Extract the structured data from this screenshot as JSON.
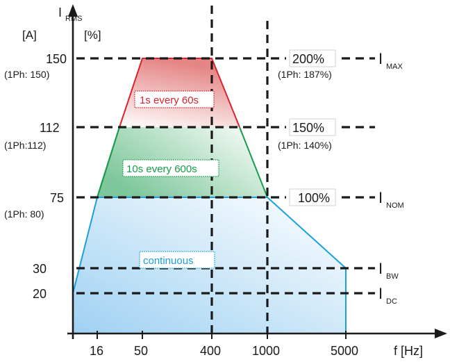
{
  "y_axis": {
    "symbol": "I",
    "symbol_sub": "RMS",
    "unit_a": "[A]",
    "unit_pct": "[%]"
  },
  "x_axis": {
    "label": "f [Hz]",
    "ticks": [
      "16",
      "50",
      "400",
      "1000",
      "5000"
    ]
  },
  "levels": [
    {
      "amps": "150",
      "amps_1ph": "(1Ph: 150)",
      "percent": "200%",
      "percent_1ph": "(1Ph: 187%)",
      "current": "I",
      "current_sub": "MAX"
    },
    {
      "amps": "112",
      "amps_1ph": "(1Ph:112)",
      "percent": "150%",
      "percent_1ph": "(1Ph: 140%)",
      "current": "",
      "current_sub": ""
    },
    {
      "amps": "75",
      "amps_1ph": "(1Ph: 80)",
      "percent": "100%",
      "percent_1ph": "",
      "current": "I",
      "current_sub": "NOM"
    },
    {
      "amps": "30",
      "amps_1ph": "",
      "percent": "",
      "percent_1ph": "",
      "current": "I",
      "current_sub": "BW"
    },
    {
      "amps": "20",
      "amps_1ph": "",
      "percent": "",
      "percent_1ph": "",
      "current": "I",
      "current_sub": "DC"
    }
  ],
  "regions": [
    {
      "label": "1s every 60s",
      "color": "#d9232e"
    },
    {
      "label": "10s every 600s",
      "color": "#169c4b"
    },
    {
      "label": "continuous",
      "color": "#1aa0dc"
    }
  ],
  "colors": {
    "overload_1s": "#d9232e",
    "overload_10s": "#169c4b",
    "continuous": "#1aa0dc",
    "lines": "#1a1a1a"
  }
}
